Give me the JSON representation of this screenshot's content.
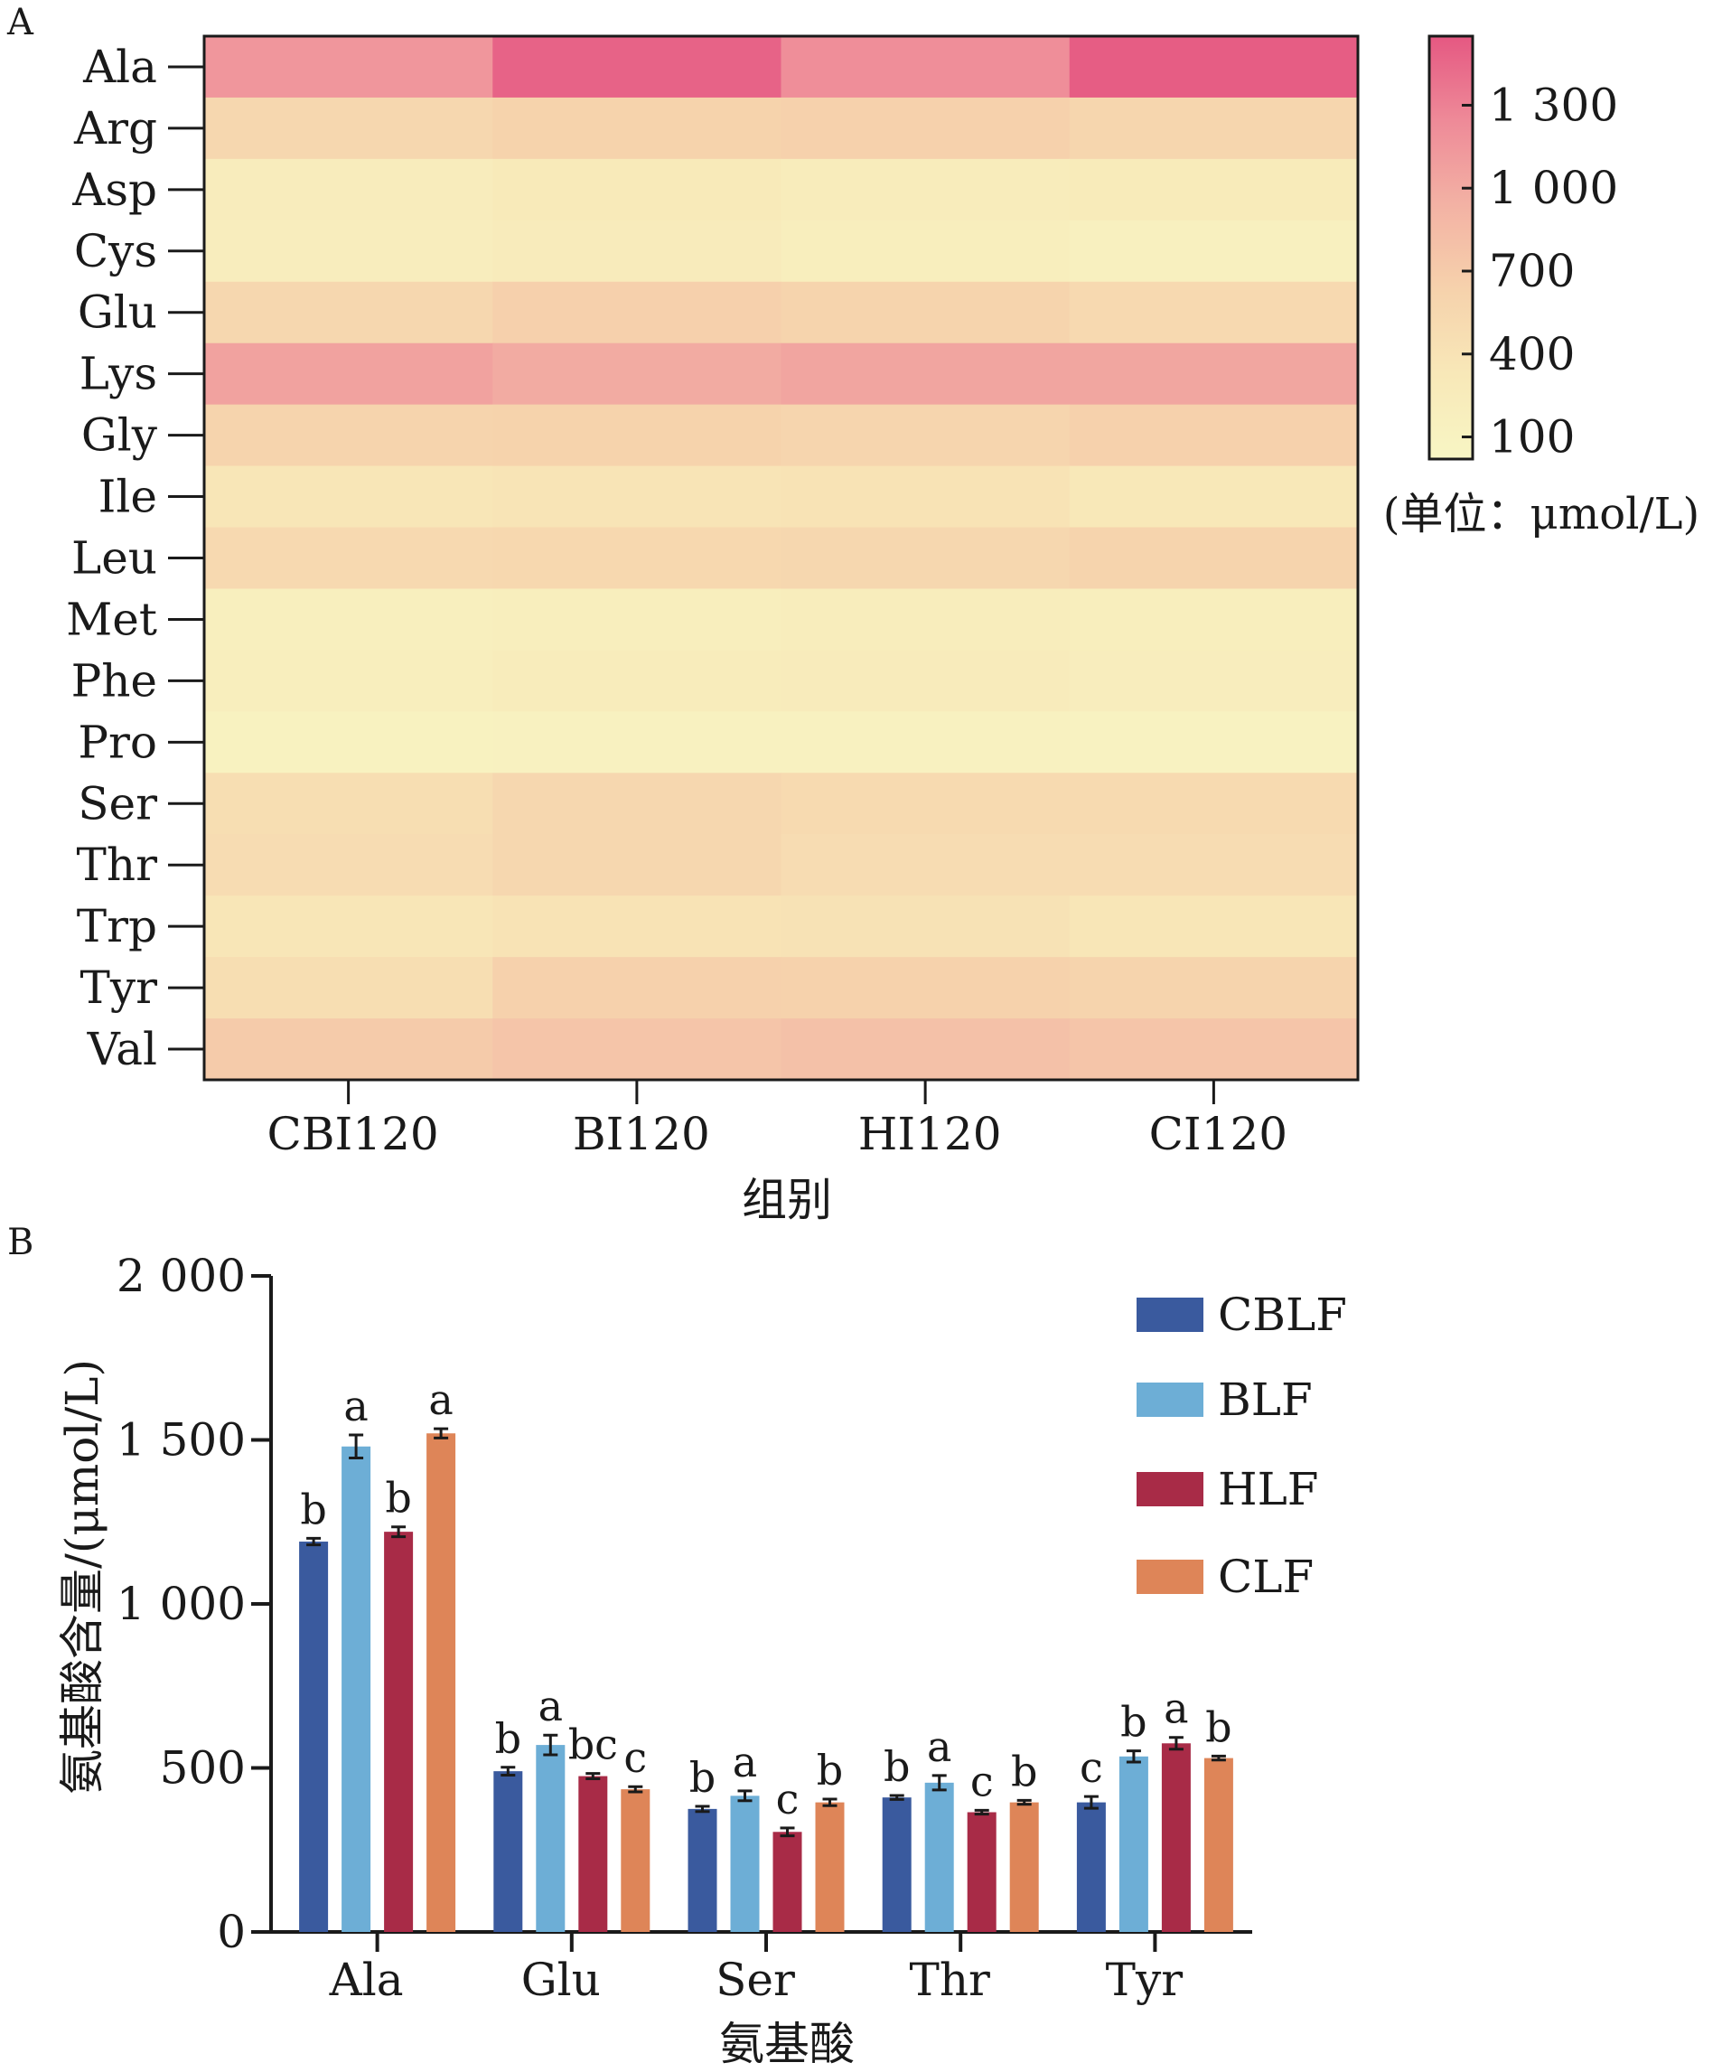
{
  "panel_labels": {
    "a": "A",
    "b": "B"
  },
  "chart_data": [
    {
      "type": "heatmap",
      "panel": "A",
      "rows": [
        "Ala",
        "Arg",
        "Asp",
        "Cys",
        "Glu",
        "Lys",
        "Gly",
        "Ile",
        "Leu",
        "Met",
        "Phe",
        "Pro",
        "Ser",
        "Thr",
        "Trp",
        "Tyr",
        "Val"
      ],
      "columns": [
        "CBI120",
        "BI120",
        "HI120",
        "CI120"
      ],
      "values": [
        [
          1150,
          1480,
          1210,
          1520
        ],
        [
          560,
          620,
          640,
          580
        ],
        [
          230,
          290,
          240,
          270
        ],
        [
          210,
          260,
          200,
          160
        ],
        [
          560,
          650,
          610,
          530
        ],
        [
          1060,
          990,
          1040,
          1030
        ],
        [
          600,
          620,
          590,
          640
        ],
        [
          350,
          380,
          390,
          320
        ],
        [
          540,
          550,
          560,
          600
        ],
        [
          170,
          200,
          220,
          190
        ],
        [
          190,
          240,
          260,
          210
        ],
        [
          110,
          130,
          120,
          100
        ],
        [
          470,
          560,
          520,
          520
        ],
        [
          490,
          560,
          490,
          490
        ],
        [
          360,
          390,
          410,
          360
        ],
        [
          470,
          640,
          630,
          610
        ],
        [
          700,
          760,
          790,
          760
        ]
      ],
      "xlabel": "组别",
      "ylabel": "",
      "colorbar": {
        "ticks": [
          100,
          400,
          700,
          1000,
          1300
        ],
        "tick_labels": [
          "100",
          "400",
          "700",
          "1 000",
          "1 300"
        ],
        "range": [
          20,
          1550
        ],
        "unit_label": "(单位：μmol/L)",
        "colors": [
          "#f8f6c4",
          "#f8e8b8",
          "#f6d2ac",
          "#f3b2a4",
          "#ee8a98",
          "#e55882"
        ]
      },
      "grid": false
    },
    {
      "type": "bar",
      "panel": "B",
      "categories": [
        "Ala",
        "Glu",
        "Ser",
        "Thr",
        "Tyr"
      ],
      "series": [
        {
          "name": "CBLF",
          "color": "#3a5a9e",
          "values": [
            1190,
            490,
            375,
            410,
            395
          ],
          "errors": [
            10,
            12,
            8,
            6,
            18
          ],
          "letters": [
            "b",
            "b",
            "b",
            "b",
            "c"
          ]
        },
        {
          "name": "BLF",
          "color": "#6daed6",
          "values": [
            1480,
            570,
            415,
            455,
            535
          ],
          "errors": [
            35,
            30,
            15,
            22,
            17
          ],
          "letters": [
            "a",
            "a",
            "a",
            "a",
            "b"
          ]
        },
        {
          "name": "HLF",
          "color": "#a82b47",
          "values": [
            1220,
            475,
            305,
            365,
            575
          ],
          "errors": [
            15,
            8,
            12,
            6,
            18
          ],
          "letters": [
            "b",
            "bc",
            "c",
            "c",
            "a"
          ]
        },
        {
          "name": "CLF",
          "color": "#de8558",
          "values": [
            1520,
            435,
            395,
            395,
            530
          ],
          "errors": [
            14,
            8,
            10,
            6,
            6
          ],
          "letters": [
            "a",
            "c",
            "b",
            "b",
            "b"
          ]
        }
      ],
      "xlabel": "氨基酸",
      "ylabel": "氨基酸含量/(μmol/L)",
      "ylim": [
        0,
        2000
      ],
      "yticks": [
        0,
        500,
        1000,
        1500,
        2000
      ],
      "ytick_labels": [
        "0",
        "500",
        "1 000",
        "1 500",
        "2 000"
      ],
      "legend_position": "top-right",
      "grid": false
    }
  ]
}
